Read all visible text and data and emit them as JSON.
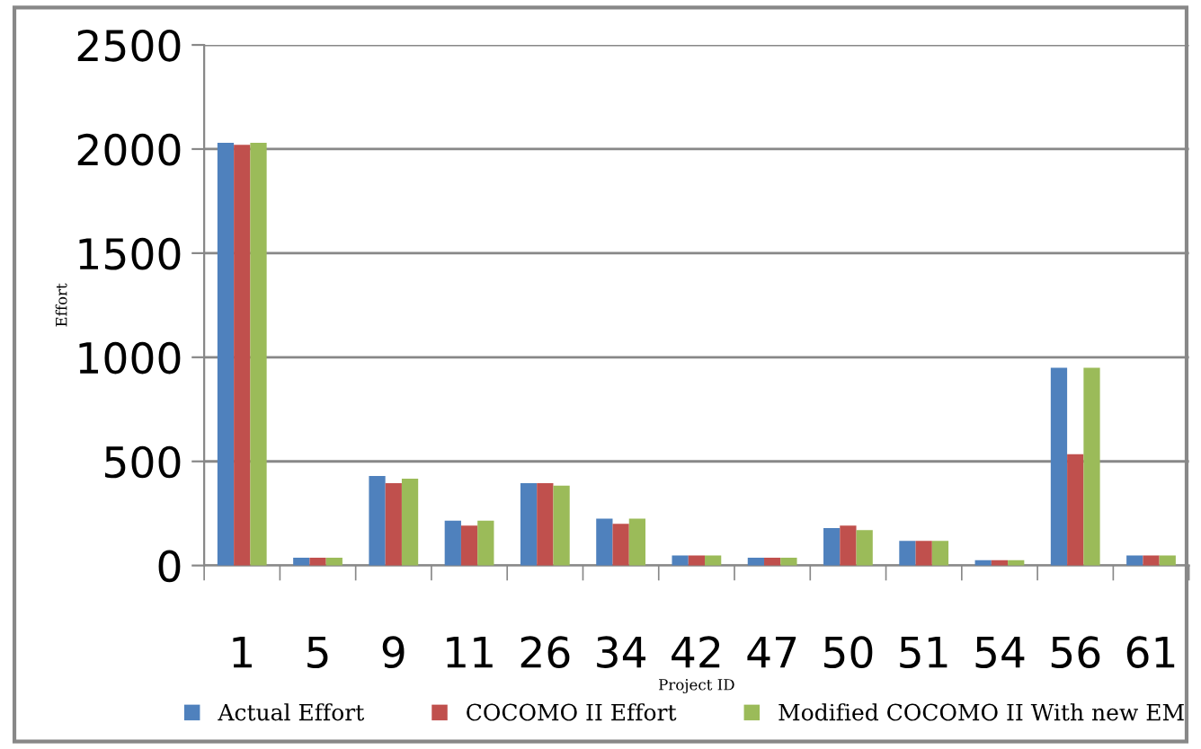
{
  "chart_data": {
    "type": "bar",
    "xlabel": "Project ID",
    "ylabel": "Effort",
    "categories": [
      "1",
      "5",
      "9",
      "11",
      "26",
      "34",
      "42",
      "47",
      "50",
      "51",
      "54",
      "56",
      "61"
    ],
    "series": [
      {
        "name": "Actual Effort",
        "color": "#4f81bd",
        "values": [
          2030,
          37,
          430,
          215,
          395,
          225,
          48,
          37,
          180,
          118,
          26,
          950,
          48
        ]
      },
      {
        "name": "COCOMO II Effort",
        "color": "#c0504d",
        "values": [
          2020,
          37,
          395,
          192,
          395,
          200,
          48,
          37,
          192,
          118,
          26,
          535,
          48
        ]
      },
      {
        "name": "Modified COCOMO II With new EM",
        "color": "#9bbb59",
        "values": [
          2030,
          37,
          417,
          215,
          383,
          225,
          48,
          37,
          170,
          118,
          26,
          950,
          48
        ]
      }
    ],
    "ylim": [
      0,
      2500
    ],
    "yticks": [
      0,
      500,
      1000,
      1500,
      2000,
      2500
    ],
    "grid": "y",
    "legend": "bottom"
  }
}
